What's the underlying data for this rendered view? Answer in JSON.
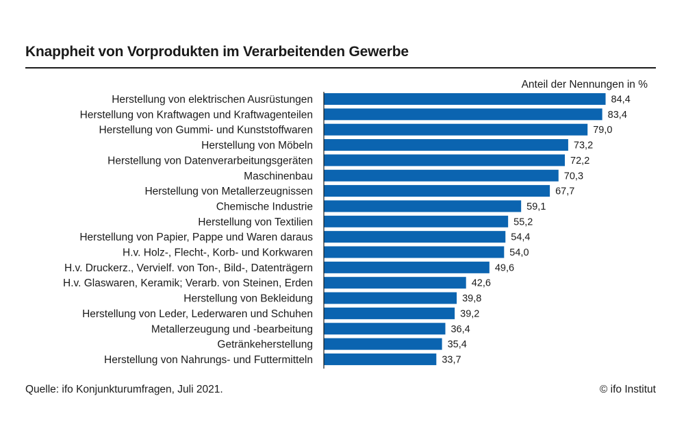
{
  "chart_data": {
    "type": "bar",
    "orientation": "horizontal",
    "title": "Knappheit von Vorprodukten im Verarbeitenden Gewerbe",
    "unit_label": "Anteil der Nennungen in %",
    "bar_color": "#0b64b0",
    "text_color": "#1a1a1a",
    "xlim": [
      0,
      100
    ],
    "grid": false,
    "categories": [
      "Herstellung von elektrischen Ausrüstungen",
      "Herstellung von Kraftwagen und Kraftwagenteilen",
      "Herstellung von Gummi- und Kunststoffwaren",
      "Herstellung von Möbeln",
      "Herstellung von Datenverarbeitungsgeräten",
      "Maschinenbau",
      "Herstellung von Metallerzeugnissen",
      "Chemische Industrie",
      "Herstellung von Textilien",
      "Herstellung von Papier, Pappe und Waren daraus",
      "H.v. Holz-, Flecht-, Korb- und Korkwaren",
      "H.v. Druckerz., Vervielf. von Ton-, Bild-, Datenträgern",
      "H.v. Glaswaren, Keramik; Verarb. von Steinen, Erden",
      "Herstellung von Bekleidung",
      "Herstellung von Leder, Lederwaren und Schuhen",
      "Metallerzeugung und -bearbeitung",
      "Getränkeherstellung",
      "Herstellung von Nahrungs- und Futtermitteln"
    ],
    "values": [
      84.4,
      83.4,
      79.0,
      73.2,
      72.2,
      70.3,
      67.7,
      59.1,
      55.2,
      54.4,
      54.0,
      49.6,
      42.6,
      39.8,
      39.2,
      36.4,
      35.4,
      33.7
    ],
    "value_labels": [
      "84,4",
      "83,4",
      "79,0",
      "73,2",
      "72,2",
      "70,3",
      "67,7",
      "59,1",
      "55,2",
      "54,4",
      "54,0",
      "49,6",
      "42,6",
      "39,8",
      "39,2",
      "36,4",
      "35,4",
      "33,7"
    ]
  },
  "footer": {
    "source": "Quelle: ifo Konjunkturumfragen, Juli 2021.",
    "copyright": "© ifo Institut"
  }
}
